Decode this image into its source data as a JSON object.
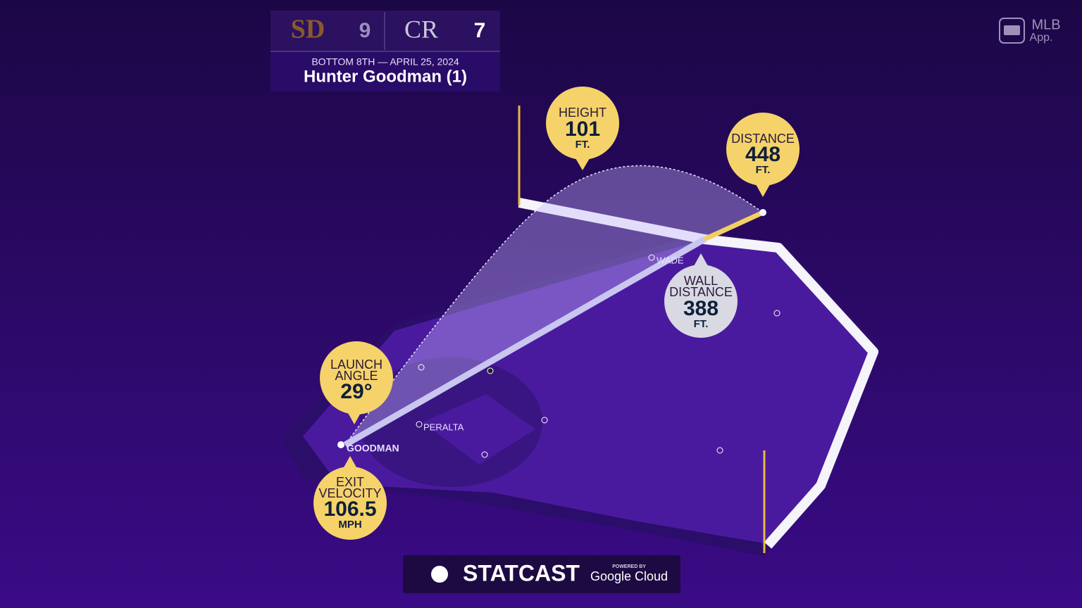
{
  "scoreboard": {
    "away_logo": "SD",
    "away_score": "9",
    "home_logo": "CR",
    "home_score": "7",
    "inning_date": "BOTTOM 8TH — APRIL 25, 2024",
    "batter": "Hunter Goodman (1)"
  },
  "app_badge": {
    "line1": "MLB",
    "line2": "App."
  },
  "callouts": [
    {
      "label": [
        "HEIGHT"
      ],
      "value": "101",
      "unit": "FT."
    },
    {
      "label": [
        "DISTANCE"
      ],
      "value": "448",
      "unit": "FT."
    },
    {
      "label": [
        "WALL",
        "DISTANCE"
      ],
      "value": "388",
      "unit": "FT."
    },
    {
      "label": [
        "LAUNCH",
        "ANGLE"
      ],
      "value": "29°"
    },
    {
      "label": [
        "EXIT",
        "VELOCITY"
      ],
      "value": "106.5",
      "unit": "MPH"
    }
  ],
  "players": [
    "WADE",
    "PERALTA",
    "GOODMAN"
  ],
  "footer": {
    "brand": "STATCAST",
    "powered": "POWERED BY",
    "partner": "Google Cloud"
  }
}
